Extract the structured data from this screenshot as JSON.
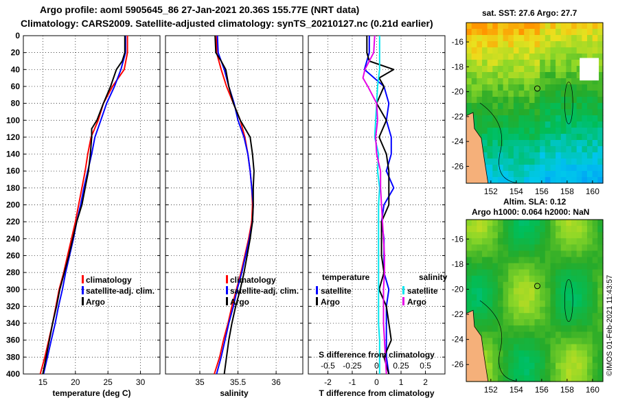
{
  "titles": {
    "line1": "Argo profile: aoml 5905645_86 27-Jan-2021 20.36S 155.77E (NRT data)",
    "line2": "Climatology: CARS2009. Satellite-adjusted climatology: synTS_20210127.nc (0.21d earlier)"
  },
  "colors": {
    "climatology": "#ff0000",
    "satellite": "#0000ff",
    "argo": "#000000",
    "sal_diff_satellite": "#00e5ee",
    "sal_diff_argo": "#e600e6",
    "land": "#f5b07a"
  },
  "chart_data": [
    {
      "id": "temperature",
      "type": "line",
      "xlabel": "temperature (deg C)",
      "ylim": [
        0,
        400
      ],
      "xlim": [
        12,
        33
      ],
      "yticks": [
        "0",
        "20",
        "40",
        "60",
        "80",
        "100",
        "120",
        "140",
        "160",
        "180",
        "200",
        "220",
        "240",
        "260",
        "280",
        "300",
        "320",
        "340",
        "360",
        "380",
        "400"
      ],
      "xticks": [
        "15",
        "20",
        "25",
        "30"
      ],
      "legend": [
        "climatology",
        "satellite-adj. clim.",
        "Argo"
      ],
      "series": [
        {
          "name": "climatology",
          "depth": [
            0,
            20,
            40,
            60,
            80,
            100,
            120,
            140,
            160,
            180,
            200,
            220,
            240,
            260,
            280,
            300,
            320,
            340,
            360,
            380,
            400
          ],
          "values": [
            28.0,
            28.0,
            27.5,
            25.7,
            24.3,
            23.5,
            22.4,
            21.9,
            21.5,
            21.0,
            20.5,
            20.0,
            19.4,
            18.8,
            18.2,
            17.5,
            17.0,
            16.5,
            15.9,
            15.3,
            14.6
          ]
        },
        {
          "name": "satellite-adj. clim.",
          "depth": [
            0,
            20,
            40,
            60,
            80,
            100,
            120,
            140,
            160,
            180,
            200,
            220,
            240,
            260,
            280,
            300,
            320,
            340,
            360,
            380,
            400
          ],
          "values": [
            27.7,
            27.7,
            27.0,
            26.0,
            24.8,
            23.9,
            23.0,
            22.5,
            21.9,
            21.3,
            20.8,
            20.2,
            19.7,
            19.1,
            18.5,
            18.0,
            17.4,
            16.9,
            16.3,
            15.7,
            15.1
          ]
        },
        {
          "name": "Argo",
          "depth": [
            0,
            20,
            30,
            40,
            60,
            80,
            100,
            110,
            120,
            140,
            160,
            180,
            200,
            220,
            240,
            260,
            280,
            300,
            320,
            340,
            360,
            380,
            400
          ],
          "values": [
            27.6,
            27.6,
            27.2,
            26.3,
            25.4,
            24.3,
            23.3,
            22.5,
            22.5,
            22.3,
            22.0,
            21.5,
            21.0,
            20.2,
            19.6,
            19.0,
            18.3,
            17.6,
            17.1,
            16.5,
            16.0,
            15.5,
            15.0
          ]
        }
      ]
    },
    {
      "id": "salinity",
      "type": "line",
      "xlabel": "salinity",
      "ylim": [
        0,
        400
      ],
      "xlim": [
        34.55,
        36.35
      ],
      "xticks": [
        "35",
        "35.5",
        "36"
      ],
      "legend": [
        "climatology",
        "satellite-adj. clim.",
        "Argo"
      ],
      "series": [
        {
          "name": "climatology",
          "depth": [
            0,
            20,
            40,
            60,
            80,
            100,
            120,
            140,
            160,
            180,
            200,
            220,
            240,
            260,
            280,
            300,
            320,
            340,
            360,
            380,
            400
          ],
          "values": [
            35.22,
            35.22,
            35.28,
            35.35,
            35.44,
            35.53,
            35.59,
            35.63,
            35.66,
            35.68,
            35.69,
            35.68,
            35.64,
            35.59,
            35.54,
            35.48,
            35.42,
            35.37,
            35.31,
            35.26,
            35.19
          ]
        },
        {
          "name": "satellite-adj. clim.",
          "depth": [
            0,
            20,
            40,
            60,
            80,
            100,
            120,
            140,
            160,
            180,
            200,
            220,
            240,
            260,
            280,
            300,
            320,
            340,
            360,
            380,
            400
          ],
          "values": [
            35.23,
            35.24,
            35.32,
            35.38,
            35.45,
            35.5,
            35.58,
            35.63,
            35.66,
            35.68,
            35.7,
            35.69,
            35.65,
            35.6,
            35.55,
            35.49,
            35.44,
            35.38,
            35.33,
            35.28,
            35.22
          ]
        },
        {
          "name": "Argo",
          "depth": [
            0,
            20,
            30,
            40,
            60,
            80,
            100,
            120,
            140,
            160,
            180,
            200,
            220,
            240,
            260,
            280,
            300,
            320,
            340,
            360,
            380,
            400
          ],
          "values": [
            35.2,
            35.21,
            35.28,
            35.34,
            35.38,
            35.44,
            35.53,
            35.66,
            35.69,
            35.71,
            35.7,
            35.7,
            35.69,
            35.66,
            35.62,
            35.58,
            35.53,
            35.47,
            35.42,
            35.38,
            35.35,
            35.32
          ]
        }
      ]
    },
    {
      "id": "difference",
      "type": "line",
      "xlabel": "T difference from climatology",
      "xlabel_top": "S difference from climatology",
      "ylim": [
        0,
        400
      ],
      "xlim": [
        -2.8,
        2.8
      ],
      "xticks": [
        "-2",
        "-1",
        "0",
        "1",
        "2"
      ],
      "xticks_top": [
        "-0.5",
        "-0.25",
        "0",
        "0.25",
        "0.5"
      ],
      "legend_left": {
        "title": "temperature",
        "items": [
          "satellite",
          "Argo"
        ]
      },
      "legend_right": {
        "title": "salinity",
        "items": [
          "satellite",
          "Argo"
        ]
      },
      "series": [
        {
          "name": "temperature satellite",
          "depth": [
            0,
            20,
            40,
            60,
            80,
            100,
            120,
            140,
            160,
            180,
            200,
            220,
            240,
            260,
            280,
            300,
            320,
            340,
            360,
            380,
            400
          ],
          "values": [
            -0.3,
            -0.3,
            -0.5,
            0.3,
            0.5,
            0.4,
            0.6,
            0.6,
            0.4,
            0.7,
            0.3,
            0.2,
            0.3,
            0.3,
            0.3,
            0.5,
            0.4,
            0.4,
            0.4,
            0.4,
            0.5
          ]
        },
        {
          "name": "temperature Argo",
          "depth": [
            0,
            20,
            30,
            40,
            50,
            60,
            80,
            100,
            120,
            140,
            160,
            180,
            200,
            220,
            240,
            260,
            280,
            300,
            320,
            340,
            360,
            380,
            400
          ],
          "values": [
            -0.4,
            -0.4,
            -0.3,
            0.7,
            0.1,
            0.3,
            0.0,
            0.4,
            0.1,
            0.4,
            0.5,
            0.5,
            0.5,
            0.2,
            0.2,
            0.2,
            0.3,
            0.1,
            0.4,
            0.5,
            0.6,
            0.3,
            0.5
          ]
        },
        {
          "name": "salinity satellite",
          "depth": [
            0,
            20,
            40,
            60,
            80,
            100,
            120,
            140,
            160,
            180,
            200,
            220,
            240,
            260,
            280,
            300,
            320,
            340,
            360,
            380,
            400
          ],
          "values": [
            0.03,
            0.03,
            0.03,
            0.01,
            0.0,
            -0.01,
            -0.02,
            0.02,
            0.01,
            0.03,
            0.02,
            0.02,
            0.02,
            0.02,
            0.02,
            0.02,
            0.02,
            0.02,
            0.03,
            0.03,
            0.03
          ]
        },
        {
          "name": "salinity Argo",
          "depth": [
            0,
            20,
            40,
            50,
            60,
            80,
            100,
            120,
            140,
            160,
            180,
            200,
            220,
            240,
            260,
            280,
            300,
            320,
            340,
            360,
            380,
            400
          ],
          "values": [
            -0.02,
            -0.03,
            -0.12,
            -0.14,
            -0.09,
            0.0,
            0.01,
            -0.01,
            0.0,
            0.04,
            0.04,
            0.05,
            0.06,
            0.07,
            0.08,
            0.08,
            0.07,
            0.07,
            0.07,
            0.08,
            0.09,
            0.1
          ]
        }
      ]
    },
    {
      "id": "map_sst",
      "type": "heatmap",
      "title": "sat. SST: 27.6 Argo: 27.7",
      "xticks": [
        "152",
        "154",
        "156",
        "158",
        "160"
      ],
      "yticks": [
        "-16",
        "-18",
        "-20",
        "-22",
        "-24",
        "-26"
      ]
    },
    {
      "id": "map_sla",
      "type": "heatmap",
      "title_line1": "Altim. SLA: 0.12",
      "title_line2": "Argo h1000: 0.064 h2000: NaN",
      "xticks": [
        "152",
        "154",
        "156",
        "158",
        "160"
      ],
      "yticks": [
        "-16",
        "-18",
        "-20",
        "-22",
        "-24",
        "-26"
      ]
    }
  ],
  "credit": "©IMOS 01-Feb-2021 11:43:57"
}
